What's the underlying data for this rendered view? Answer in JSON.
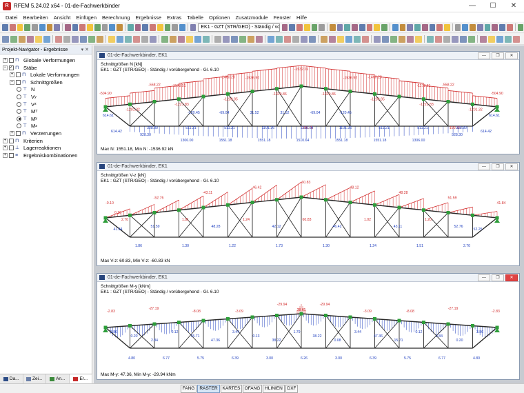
{
  "app": {
    "title": "RFEM 5.24.02 x64 - 01-de-Fachwerkbinder",
    "controls": [
      "—",
      "☐",
      "✕"
    ]
  },
  "menu": [
    "Datei",
    "Bearbeiten",
    "Ansicht",
    "Einfügen",
    "Berechnung",
    "Ergebnisse",
    "Extras",
    "Tabelle",
    "Optionen",
    "Zusatzmodule",
    "Fenster",
    "Hilfe"
  ],
  "toolbar": {
    "loadcase_combo": "EK1 - GZT (STR/GEO) - Ständig / vorübe"
  },
  "navigator": {
    "title": "Projekt-Navigator - Ergebnisse",
    "controls": "▾ ✕",
    "items": [
      {
        "label": "Globale Verformungen"
      },
      {
        "label": "Stäbe"
      },
      {
        "label": "Lokale Verformungen"
      },
      {
        "label": "Schnittgrößen"
      },
      {
        "label": "N",
        "sub": ""
      },
      {
        "label": "V",
        "sub": "y"
      },
      {
        "label": "V",
        "sub": "z"
      },
      {
        "label": "M",
        "sub": "T"
      },
      {
        "label": "M",
        "sub": "y"
      },
      {
        "label": "M",
        "sub": "z"
      },
      {
        "label": "Verzerrungen"
      },
      {
        "label": "Kriterien"
      },
      {
        "label": "Lagerreaktionen"
      },
      {
        "label": "Ergebniskombinationen"
      }
    ],
    "tabs": [
      "Da...",
      "Zei...",
      "An...",
      "Er..."
    ]
  },
  "windows": [
    {
      "title": "01-de-Fachwerkbinder, EK1",
      "info1": "Schnittgrößen N [kN]",
      "info2": "EK1 : GZT (STR/GEO) - Ständig / vorübergehend - Gl. 6.10",
      "footer": "Max N: 1551.18, Min N: -1536.92 kN",
      "top_labels": [
        "-504.90",
        "-558.22",
        "-1178.51",
        "-1460.28",
        "-1536.92",
        "-1532.26",
        "-1536.92",
        "-1460.28",
        "-1178.51",
        "-558.22",
        "-504.90"
      ],
      "inner_labels": [
        "-1201.32",
        "-1221.83",
        "-1239.85",
        "-1310.86",
        "-1310.86",
        "-1239.85",
        "-1221.83",
        "-1201.32"
      ],
      "diag_labels": [
        "-120.45",
        "-69.04",
        "31.52",
        "31.52",
        "-69.04",
        "-120.45",
        "-190.75",
        "-190.75"
      ],
      "left_labels": [
        "614.61",
        "614.42"
      ],
      "right_labels": [
        "614.61",
        "614.42"
      ],
      "bottom_row1": [
        "328.80",
        "511.21",
        "511.21",
        "1101.36",
        "1310.64",
        "1101.36",
        "511.21",
        "511.21",
        "328.80"
      ],
      "bottom_row2": [
        "1306.00",
        "1551.18",
        "1551.18",
        "1510.64",
        "1551.18",
        "1551.18",
        "1306.00"
      ],
      "bottom_row3": [
        "928.30",
        "928.30"
      ]
    },
    {
      "title": "01-de-Fachwerkbinder, EK1",
      "info1": "Schnittgrößen V-z [kN]",
      "info2": "EK1 : GZT (STR/GEO) - Ständig / vorübergehend - Gl. 6.10",
      "footer": "Max V-z: 60.83, Min V-z: -60.83 kN",
      "top_labels": [
        "-0.10",
        "-52.76",
        "-43.11",
        "-46.42",
        "-60.83",
        "48.12",
        "48.28",
        "51.59",
        "41.84"
      ],
      "mid_labels": [
        "2.70",
        "51.59",
        "1.81",
        "48.28",
        "1.24",
        "42.12",
        "60.83",
        "46.42",
        "1.02",
        "43.11",
        "1.20",
        "52.76"
      ],
      "bottom_labels": [
        "1.86",
        "1.30",
        "1.22",
        "1.73",
        "1.30",
        "1.24",
        "1.51",
        "2.70"
      ],
      "left_labels": [
        "41.84",
        "0.10"
      ],
      "right_labels": [
        "52.25"
      ]
    },
    {
      "title": "01-de-Fachwerkbinder, EK1",
      "info1": "Schnittgrößen M-y [kNm]",
      "info2": "EK1 : GZT (STR/GEO) - Ständig / vorübergehend - Gl. 6.10",
      "footer": "Max M-y: 47.36, Min M-y: -29.94 kNm",
      "top_labels": [
        "-2.83",
        "-27.19",
        "-8.08",
        "-3.09",
        "-29.94",
        "-29.94",
        "-3.09",
        "-8.08",
        "-27.19",
        "-2.83"
      ],
      "mid_labels": [
        "3.86",
        "0.20",
        "2.84",
        "0.12",
        "15.71",
        "47.36",
        "3.44",
        "0.13",
        "38.22",
        "1.79",
        "38.22",
        "0.08",
        "3.44",
        "47.36",
        "15.71",
        "0.12",
        "2.84",
        "0.20",
        "3.86"
      ],
      "bottom_labels": [
        "4.80",
        "6.77",
        "5.75",
        "6.39",
        "3.00",
        "6.26",
        "3.00",
        "6.39",
        "5.75",
        "6.77",
        "4.80"
      ],
      "peak_label": "28.61"
    }
  ],
  "statusbar": {
    "buttons": [
      "FANG",
      "RASTER",
      "KARTES",
      "OFANG",
      "HLINIEN",
      "DXF"
    ],
    "active": [
      "RASTER"
    ]
  },
  "colors": {
    "compression": "#d32f2f",
    "tension": "#1f3fbf",
    "member": "#2b2b2b",
    "node": "#2e9e3a"
  }
}
